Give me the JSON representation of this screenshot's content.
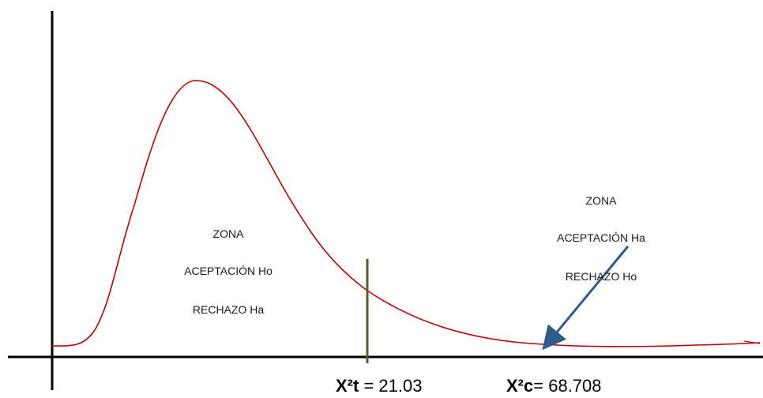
{
  "zone_left": {
    "line1": "ZONA",
    "line2": "ACEPTACIÓN Ho",
    "line3": "RECHAZO Ha"
  },
  "zone_right": {
    "line1": "ZONA",
    "line2": "ACEPTACIÓN Ha",
    "line3": "RECHAZO Ho"
  },
  "critical_value": {
    "symbol": "X²t",
    "operator": " = ",
    "value": "21.03"
  },
  "calculated_value": {
    "symbol": "X²c",
    "operator": "= ",
    "value": "68.708"
  },
  "colors": {
    "axis": "#000000",
    "curve": "#c00000",
    "critical_line": "#4f6228",
    "arrow": "#2e5a8c"
  }
}
